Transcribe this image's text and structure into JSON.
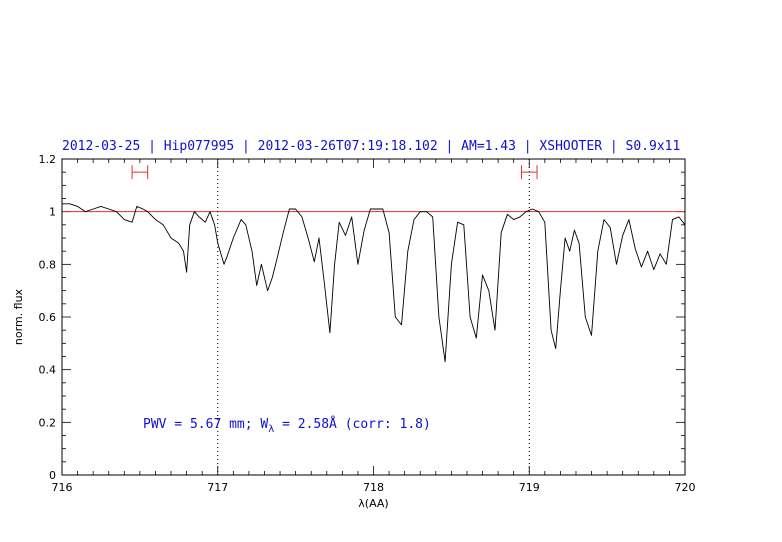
{
  "chart_data": {
    "type": "line",
    "title": "2012-03-25 | Hip077995 | 2012-03-26T07:19:18.102 | AM=1.43 | XSHOOTER | S0.9x11",
    "xlabel": "λ(AA)",
    "ylabel": "norm. flux",
    "xlim": [
      716,
      720
    ],
    "ylim": [
      0,
      1.2
    ],
    "xticks": [
      716,
      717,
      718,
      719,
      720
    ],
    "xtick_labels": [
      "716",
      "717",
      "718",
      "719",
      "720"
    ],
    "yticks": [
      0,
      0.2,
      0.4,
      0.6,
      0.8,
      1,
      1.2
    ],
    "ytick_labels": [
      "0",
      "0.2",
      "0.4",
      "0.6",
      "0.8",
      "1",
      "1.2"
    ],
    "reference_line": {
      "y": 1.0,
      "color": "#e03030"
    },
    "vertical_markers": [
      717.0,
      719.0
    ],
    "continuum_windows": [
      {
        "x": [
          716.45,
          716.55
        ],
        "y": 1.15
      },
      {
        "x": [
          718.95,
          719.05
        ],
        "y": 1.15
      }
    ],
    "annotation": {
      "pwv": "PWV = 5.67 mm; W",
      "subscript": "λ",
      "rest": " = 2.58Å (corr: 1.8)"
    },
    "series": [
      {
        "color": "#000000",
        "x": [
          716.0,
          716.05,
          716.1,
          716.15,
          716.2,
          716.25,
          716.3,
          716.35,
          716.4,
          716.45,
          716.48,
          716.52,
          716.55,
          716.6,
          716.65,
          716.7,
          716.75,
          716.78,
          716.8,
          716.82,
          716.85,
          716.88,
          716.92,
          716.95,
          716.98,
          717.0,
          717.02,
          717.04,
          717.06,
          717.1,
          717.15,
          717.18,
          717.22,
          717.25,
          717.28,
          717.32,
          717.35,
          717.38,
          717.42,
          717.46,
          717.5,
          717.54,
          717.58,
          717.62,
          717.65,
          717.68,
          717.72,
          717.75,
          717.78,
          717.82,
          717.86,
          717.9,
          717.94,
          717.98,
          718.02,
          718.06,
          718.1,
          718.14,
          718.18,
          718.22,
          718.26,
          718.3,
          718.34,
          718.38,
          718.42,
          718.46,
          718.5,
          718.54,
          718.58,
          718.62,
          718.66,
          718.7,
          718.74,
          718.78,
          718.82,
          718.86,
          718.9,
          718.94,
          718.98,
          719.02,
          719.06,
          719.1,
          719.14,
          719.17,
          719.2,
          719.23,
          719.26,
          719.29,
          719.32,
          719.36,
          719.4,
          719.44,
          719.48,
          719.52,
          719.56,
          719.6,
          719.64,
          719.68,
          719.72,
          719.76,
          719.8,
          719.84,
          719.88,
          719.92,
          719.96,
          720.0
        ],
        "y": [
          1.03,
          1.03,
          1.02,
          1.0,
          1.01,
          1.02,
          1.01,
          1.0,
          0.97,
          0.96,
          1.02,
          1.01,
          1.0,
          0.97,
          0.95,
          0.9,
          0.88,
          0.85,
          0.77,
          0.95,
          1.0,
          0.98,
          0.96,
          1.0,
          0.95,
          0.88,
          0.84,
          0.8,
          0.83,
          0.9,
          0.97,
          0.95,
          0.85,
          0.72,
          0.8,
          0.7,
          0.75,
          0.82,
          0.92,
          1.01,
          1.01,
          0.98,
          0.9,
          0.81,
          0.9,
          0.75,
          0.54,
          0.8,
          0.96,
          0.91,
          0.98,
          0.8,
          0.93,
          1.01,
          1.01,
          1.01,
          0.92,
          0.6,
          0.57,
          0.85,
          0.97,
          1.0,
          1.0,
          0.98,
          0.6,
          0.43,
          0.8,
          0.96,
          0.95,
          0.6,
          0.52,
          0.76,
          0.7,
          0.55,
          0.92,
          0.99,
          0.97,
          0.98,
          1.0,
          1.01,
          1.0,
          0.96,
          0.55,
          0.48,
          0.7,
          0.9,
          0.85,
          0.93,
          0.88,
          0.6,
          0.53,
          0.85,
          0.97,
          0.94,
          0.8,
          0.91,
          0.97,
          0.86,
          0.79,
          0.85,
          0.78,
          0.84,
          0.8,
          0.97,
          0.98,
          0.95
        ]
      }
    ]
  }
}
